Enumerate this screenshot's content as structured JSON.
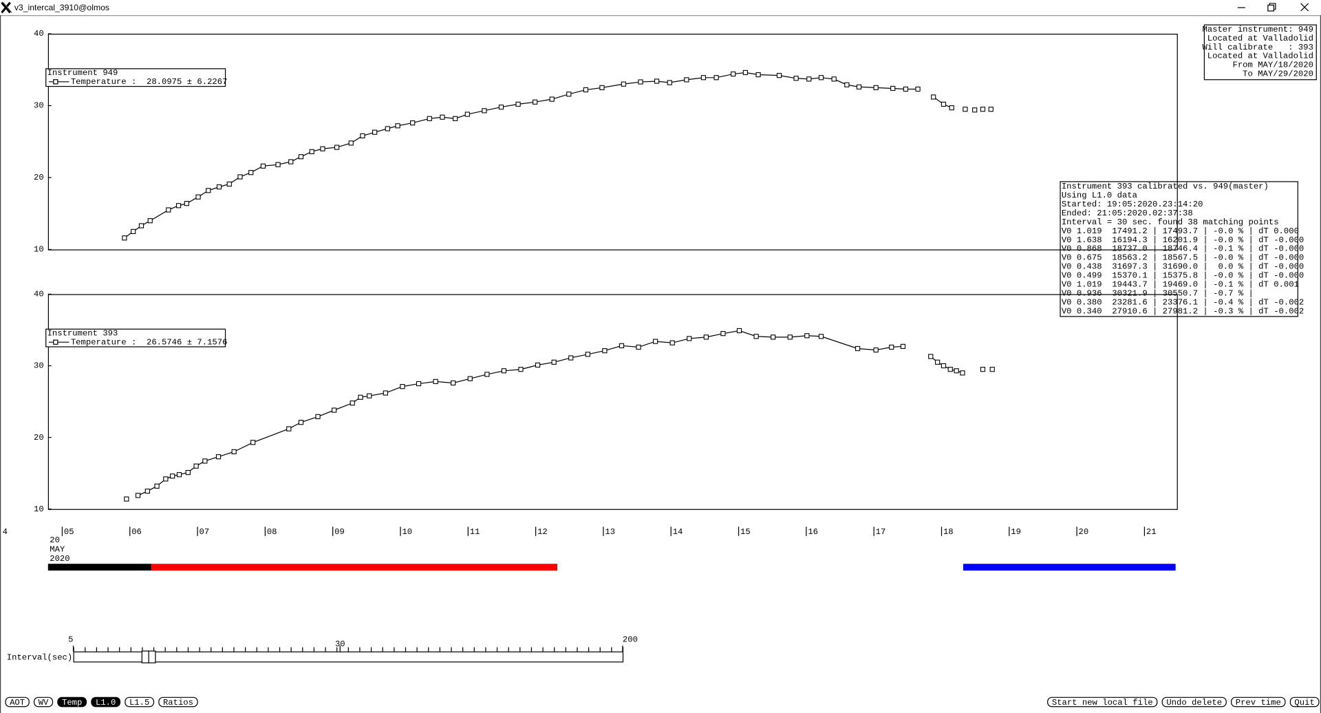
{
  "window": {
    "title": "v3_intercal_3910@olmos"
  },
  "master_info": [
    "Master instrument: 949",
    "Located at Valladolid",
    "Will calibrate   : 393",
    "Located at Valladolid",
    "From MAY/18/2020",
    "To MAY/29/2020"
  ],
  "calibration_report": [
    "Instrument 393 calibrated vs. 949(master)",
    "Using L1.0 data",
    "Started: 19:05:2020.23:14:20",
    "Ended: 21:05:2020.02:37:38",
    "Interval = 30 sec. found 38 matching points",
    "V0 1.019  17491.2 | 17493.7 | -0.0 % | dT 0.000",
    "V0 1.638  16194.3 | 16201.9 | -0.0 % | dT -0.000",
    "V0 0.868  18737.0 | 18746.4 | -0.1 % | dT -0.000",
    "V0 0.675  18563.2 | 18567.5 | -0.0 % | dT -0.000",
    "V0 0.438  31697.3 | 31690.0 |  0.0 % | dT -0.000",
    "V0 0.499  15370.1 | 15375.8 | -0.0 % | dT -0.000",
    "V0 1.019  19443.7 | 19469.0 | -0.1 % | dT 0.001",
    "V0 0.936  30321.9 | 30550.7 | -0.7 % |",
    "V0 0.380  23281.6 | 23376.1 | -0.4 % | dT -0.002",
    "V0 0.340  27910.6 | 27981.2 | -0.3 % | dT -0.002"
  ],
  "time_axis": {
    "xlim": [
      4.79,
      21.48
    ],
    "xticks": [
      {
        "value": 5,
        "label": "05"
      },
      {
        "value": 6,
        "label": "06"
      },
      {
        "value": 7,
        "label": "07"
      },
      {
        "value": 8,
        "label": "08"
      },
      {
        "value": 9,
        "label": "09"
      },
      10,
      11,
      12,
      13,
      14,
      15,
      16,
      17,
      18,
      19,
      20,
      21
    ],
    "edge_label": "4",
    "date_label": [
      "20",
      "MAY",
      "2020"
    ]
  },
  "chart_data": [
    {
      "type": "line",
      "legend_title": "Instrument 949",
      "legend_label": "Temperature :  28.0975 ± 6.2267",
      "color": "#000000",
      "ylim": [
        10,
        40
      ],
      "yticks": [
        10,
        20,
        30,
        40
      ],
      "x": [
        5.92,
        6.05,
        6.17,
        6.3,
        6.57,
        6.72,
        6.84,
        7.01,
        7.16,
        7.32,
        7.47,
        7.63,
        7.79,
        7.97,
        8.19,
        8.38,
        8.53,
        8.69,
        8.85,
        9.06,
        9.27,
        9.44,
        9.62,
        9.81,
        9.96,
        10.18,
        10.43,
        10.62,
        10.81,
        10.99,
        11.24,
        11.49,
        11.74,
        11.99,
        12.24,
        12.49,
        12.74,
        12.98,
        13.3,
        13.55,
        13.79,
        13.98,
        14.23,
        14.48,
        14.67,
        14.92,
        15.1,
        15.29,
        15.6,
        15.85,
        16.04,
        16.22,
        16.41,
        16.6,
        16.78,
        17.03,
        17.28,
        17.47,
        17.65,
        null,
        17.88,
        18.03,
        18.15,
        null,
        18.35,
        null,
        18.49,
        null,
        18.61,
        null,
        18.73
      ],
      "values": [
        11.6,
        12.5,
        13.3,
        14.0,
        15.5,
        16.1,
        16.4,
        17.3,
        18.2,
        18.7,
        19.1,
        20.1,
        20.7,
        21.6,
        21.8,
        22.2,
        22.9,
        23.6,
        24.0,
        24.2,
        24.8,
        25.8,
        26.3,
        26.8,
        27.2,
        27.6,
        28.2,
        28.4,
        28.2,
        28.8,
        29.3,
        29.8,
        30.2,
        30.5,
        30.9,
        31.6,
        32.2,
        32.5,
        33.0,
        33.3,
        33.4,
        33.2,
        33.6,
        33.9,
        33.9,
        34.4,
        34.6,
        34.3,
        34.2,
        33.8,
        33.7,
        33.9,
        33.7,
        32.9,
        32.6,
        32.5,
        32.4,
        32.3,
        32.3,
        null,
        31.2,
        30.2,
        29.7,
        null,
        29.5,
        null,
        29.4,
        null,
        29.5,
        null,
        29.5
      ]
    },
    {
      "type": "line",
      "legend_title": "Instrument 393",
      "legend_label": "Temperature :  26.5746 ± 7.1576",
      "color": "#000000",
      "ylim": [
        10,
        40
      ],
      "yticks": [
        10,
        20,
        30,
        40
      ],
      "x": [
        5.95,
        null,
        6.12,
        6.26,
        6.4,
        6.53,
        6.63,
        6.73,
        6.86,
        6.98,
        7.11,
        7.31,
        7.54,
        7.82,
        8.35,
        8.53,
        8.78,
        9.02,
        9.29,
        9.41,
        9.54,
        9.78,
        10.03,
        10.27,
        10.52,
        10.78,
        11.03,
        11.28,
        11.53,
        11.78,
        12.03,
        12.27,
        12.52,
        12.77,
        13.02,
        13.27,
        13.52,
        13.77,
        14.02,
        14.27,
        14.52,
        14.77,
        15.01,
        15.26,
        15.51,
        15.76,
        16.01,
        16.22,
        16.76,
        17.03,
        17.26,
        17.43,
        null,
        17.84,
        17.94,
        18.03,
        18.13,
        18.22,
        18.31,
        null,
        18.61,
        null,
        18.75
      ],
      "values": [
        11.4,
        null,
        11.9,
        12.5,
        13.2,
        14.2,
        14.6,
        14.8,
        15.1,
        16.0,
        16.7,
        17.3,
        18.0,
        19.3,
        21.2,
        22.1,
        22.9,
        23.8,
        24.8,
        25.6,
        25.8,
        26.2,
        27.1,
        27.5,
        27.8,
        27.6,
        28.2,
        28.8,
        29.3,
        29.5,
        30.1,
        30.5,
        31.1,
        31.6,
        32.1,
        32.8,
        32.6,
        33.4,
        33.2,
        33.8,
        34.0,
        34.5,
        34.9,
        34.1,
        34.0,
        34.0,
        34.2,
        34.1,
        32.4,
        32.2,
        32.6,
        32.7,
        null,
        31.3,
        30.5,
        30.0,
        29.5,
        29.3,
        29.0,
        null,
        29.5,
        null,
        29.5
      ]
    }
  ],
  "coverage_bars": [
    {
      "start": 4.79,
      "end": 6.32,
      "color": "#000000"
    },
    {
      "start": 6.32,
      "end": 12.32,
      "color": "#ff0000"
    },
    {
      "start": 18.32,
      "end": 21.46,
      "color": "#0000ff"
    }
  ],
  "slider": {
    "label": "Interval(sec)",
    "xlim": [
      5,
      200
    ],
    "xticks": [
      5,
      30,
      200
    ],
    "log": true
  },
  "buttons_left": [
    {
      "label": "AOT",
      "active": false
    },
    {
      "label": "WV",
      "active": false
    },
    {
      "label": "Temp",
      "active": true
    },
    {
      "label": "L1.0",
      "active": true
    },
    {
      "label": "L1.5",
      "active": false
    },
    {
      "label": "Ratios",
      "active": false
    }
  ],
  "buttons_right": [
    {
      "label": "Start new local file",
      "active": false
    },
    {
      "label": "Undo delete",
      "active": false
    },
    {
      "label": "Prev time",
      "active": false
    },
    {
      "label": "Quit",
      "active": false
    }
  ]
}
